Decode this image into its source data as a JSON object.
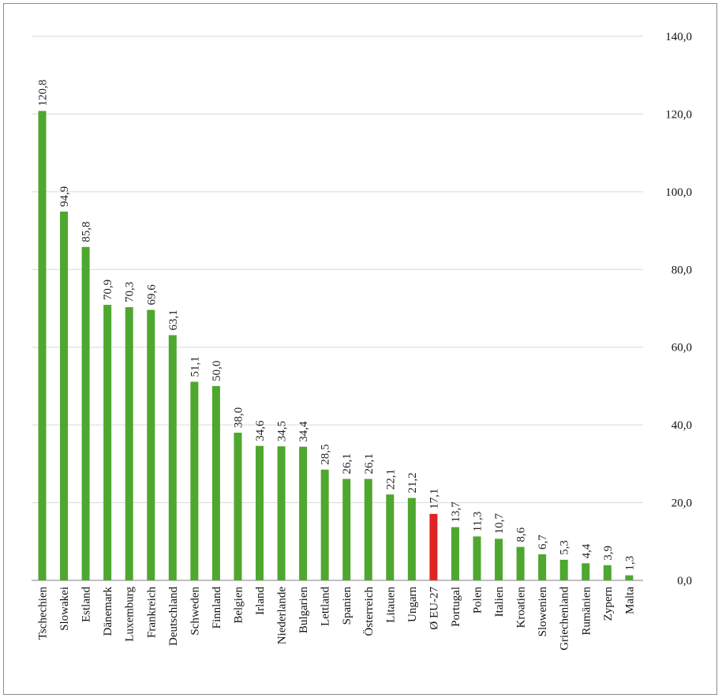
{
  "chart_data": {
    "type": "bar",
    "categories": [
      "Tschechien",
      "Slowakei",
      "Estland",
      "Dänemark",
      "Luxemburg",
      "Frankreich",
      "Deutschland",
      "Schweden",
      "Finnland",
      "Belgien",
      "Irland",
      "Niederlande",
      "Bulgarien",
      "Lettland",
      "Spanien",
      "Österreich",
      "Litauen",
      "Ungarn",
      "Ø EU-27",
      "Portugal",
      "Polen",
      "Italien",
      "Kroatien",
      "Slowenien",
      "Griechenland",
      "Rumänien",
      "Zypern",
      "Malta"
    ],
    "values": [
      120.8,
      94.9,
      85.8,
      70.9,
      70.3,
      69.6,
      63.1,
      51.1,
      50.0,
      38.0,
      34.6,
      34.5,
      34.4,
      28.5,
      26.1,
      26.1,
      22.1,
      21.2,
      17.1,
      13.7,
      11.3,
      10.7,
      8.6,
      6.7,
      5.3,
      4.4,
      3.9,
      1.3
    ],
    "value_labels": [
      "120,8",
      "94,9",
      "85,8",
      "70,9",
      "70,3",
      "69,6",
      "63,1",
      "51,1",
      "50,0",
      "38,0",
      "34,6",
      "34,5",
      "34,4",
      "28,5",
      "26,1",
      "26,1",
      "22,1",
      "21,2",
      "17,1",
      "13,7",
      "11,3",
      "10,7",
      "8,6",
      "6,7",
      "5,3",
      "4,4",
      "3,9",
      "1,3"
    ],
    "highlight_category": "Ø EU-27",
    "colors": {
      "bar": "#4ea72e",
      "highlight": "#e02424",
      "grid": "#d9d9d9",
      "axis": "#808080"
    },
    "y_ticks": [
      "0,0",
      "20,0",
      "40,0",
      "60,0",
      "80,0",
      "100,0",
      "120,0",
      "140,0"
    ],
    "ylim": [
      0,
      140
    ],
    "y_axis_position": "right",
    "grid": true,
    "title": "",
    "xlabel": "",
    "ylabel": ""
  }
}
